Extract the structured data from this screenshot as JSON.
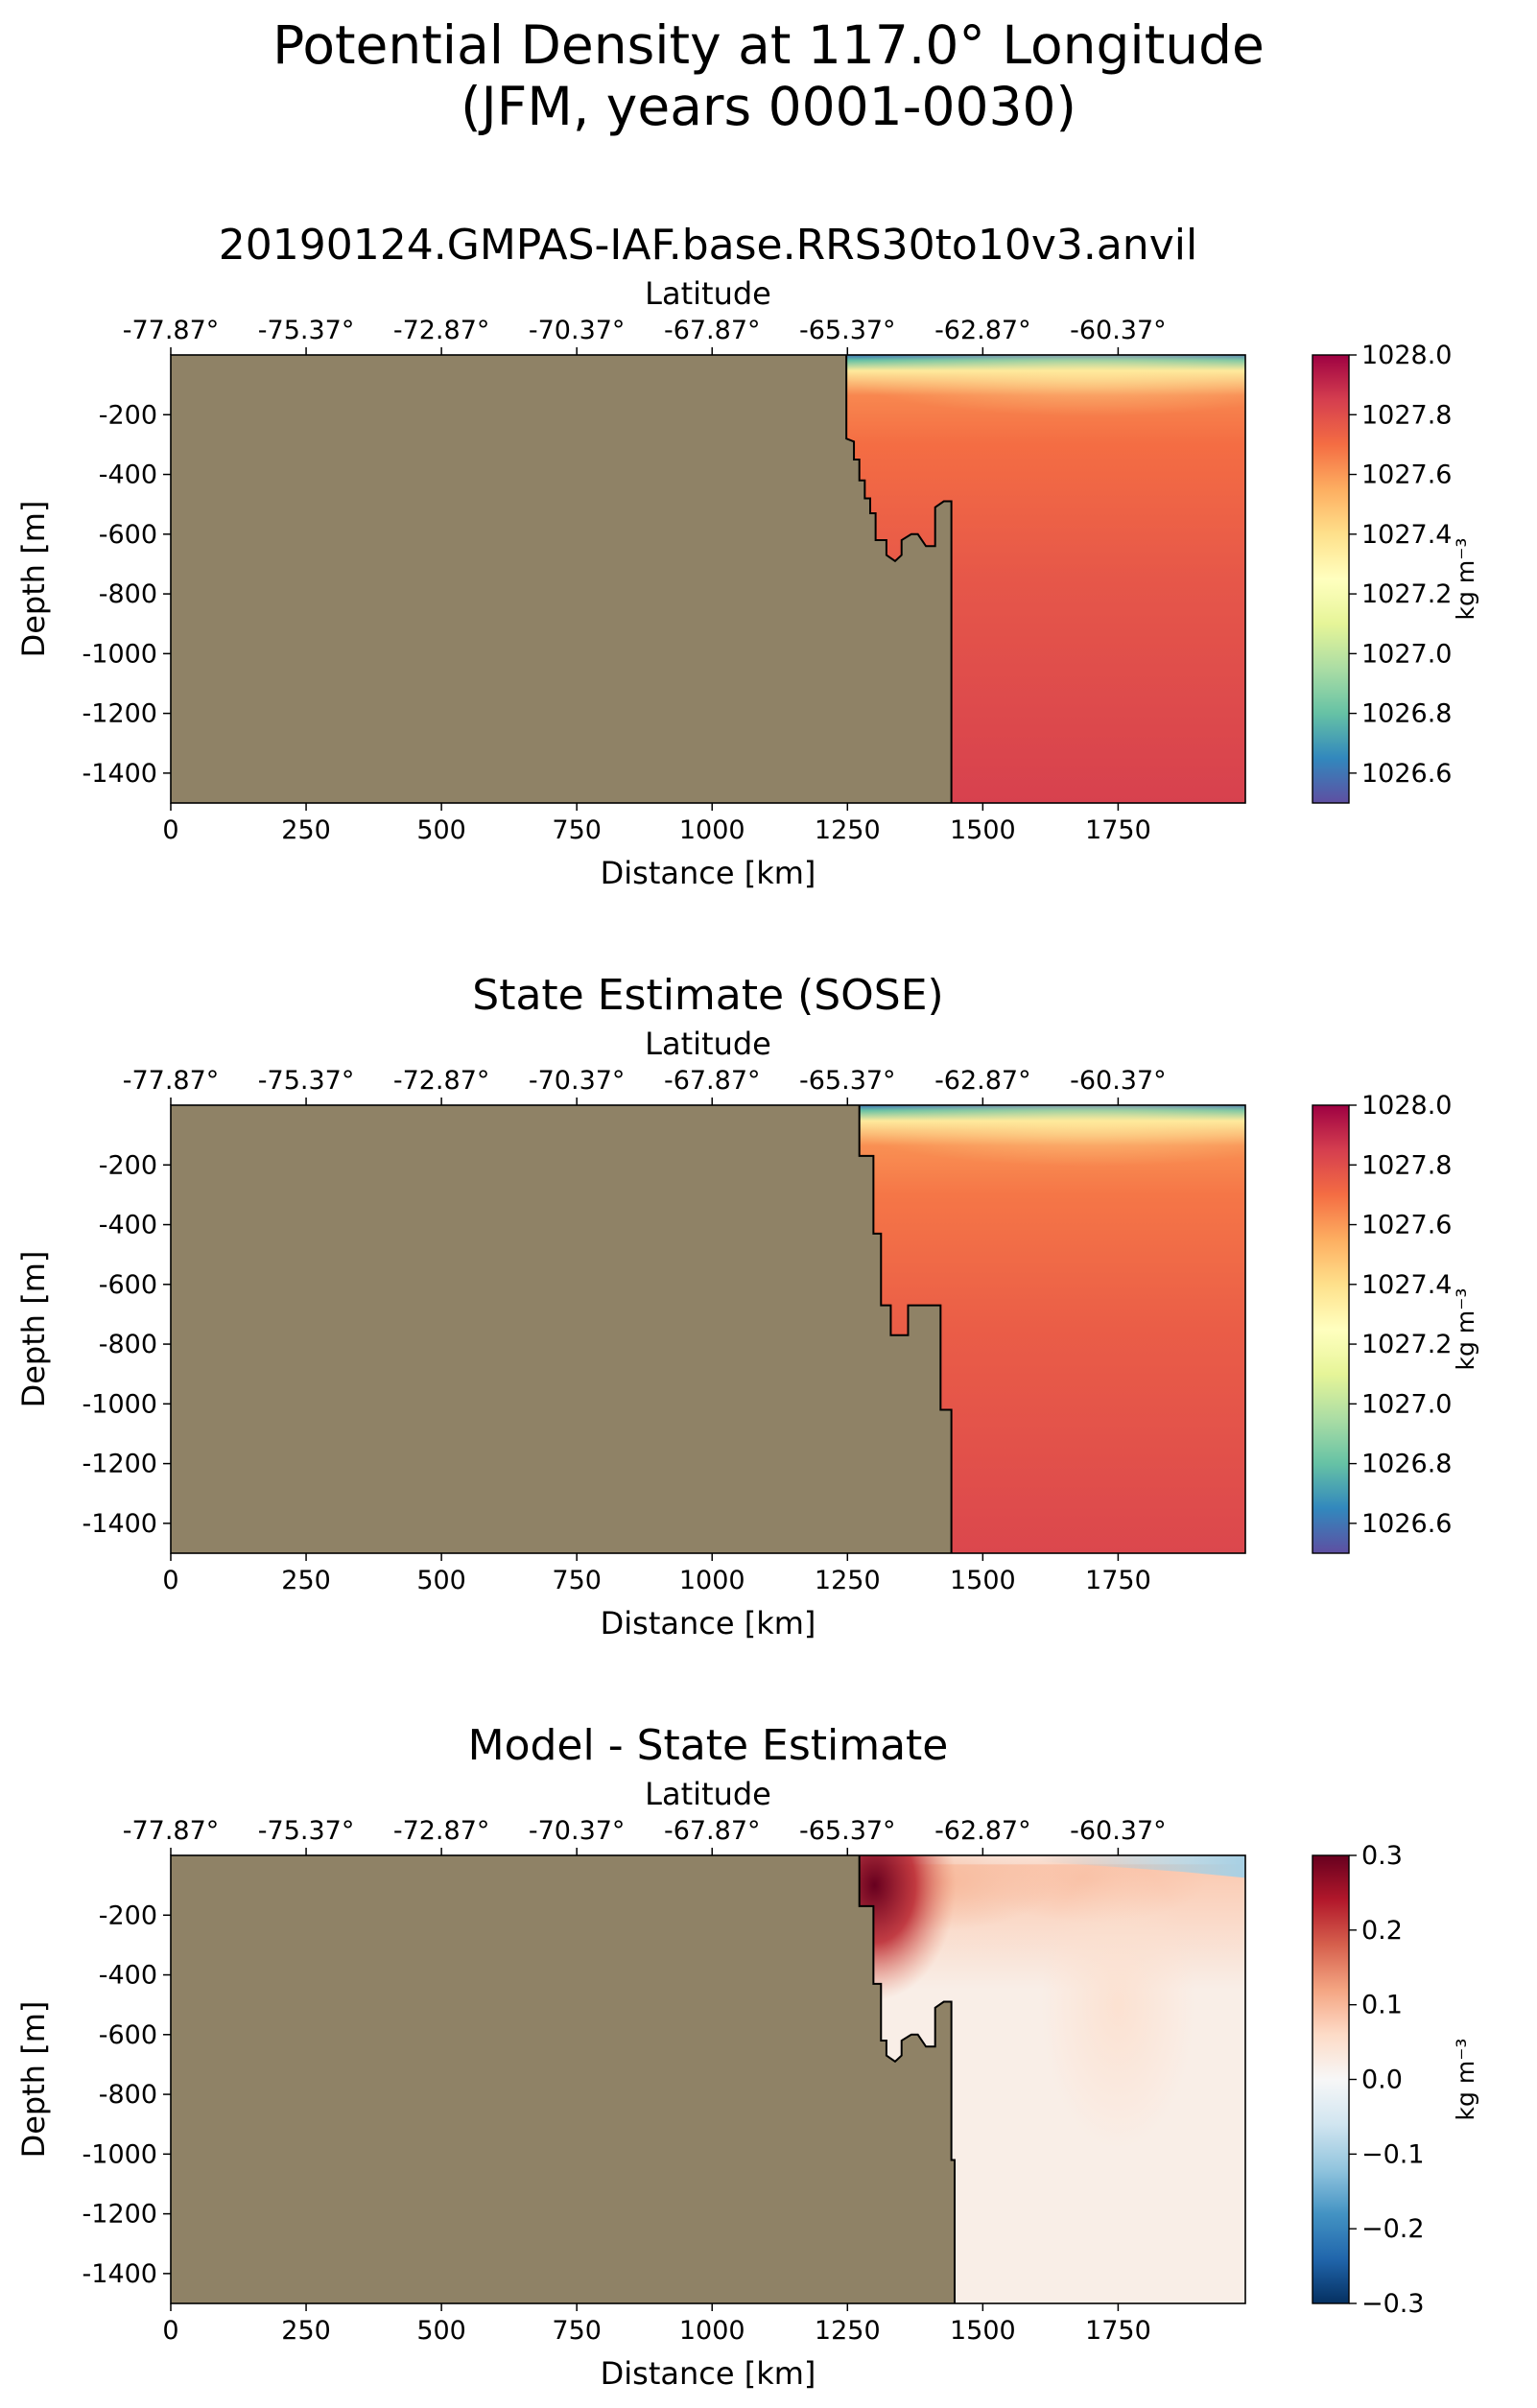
{
  "figure": {
    "title_line1": "Potential Density at 117.0° Longitude",
    "title_line2": "(JFM, years 0001-0030)"
  },
  "colors": {
    "land": "#8f8266",
    "frame": "#000000"
  },
  "chart_data": [
    {
      "type": "heatmap",
      "title": "20190124.GMPAS-IAF.base.RRS30to10v3.anvil",
      "xlabel": "Distance [km]",
      "ylabel": "Depth [m]",
      "top_xlabel": "Latitude",
      "xlim": [
        0,
        1985
      ],
      "ylim": [
        -1500,
        0
      ],
      "xticks": [
        0,
        250,
        500,
        750,
        1000,
        1250,
        1500,
        1750
      ],
      "yticks": [
        -200,
        -400,
        -600,
        -800,
        -1000,
        -1200,
        -1400
      ],
      "top_xtick_labels": [
        "-77.87°",
        "-75.37°",
        "-72.87°",
        "-70.37°",
        "-67.87°",
        "-65.37°",
        "-62.87°",
        "-60.37°"
      ],
      "colorbar": {
        "label": "kg m⁻³",
        "range": [
          1026.5,
          1028.0
        ],
        "ticks": [
          1026.6,
          1026.8,
          1027.0,
          1027.2,
          1027.4,
          1027.6,
          1027.8,
          1028.0
        ],
        "tick_labels": [
          "1026.6",
          "1026.8",
          "1027.0",
          "1027.2",
          "1027.4",
          "1027.6",
          "1027.8",
          "1028.0"
        ],
        "colormap": "Spectral_r"
      },
      "field": {
        "surface_value": 1026.6,
        "near_surface_value": 1027.35,
        "upper_value": 1027.7,
        "deep_value": 1027.84
      },
      "bathymetry_km_m": [
        [
          1248,
          0
        ],
        [
          1248,
          -280
        ],
        [
          1262,
          -290
        ],
        [
          1262,
          -350
        ],
        [
          1272,
          -350
        ],
        [
          1272,
          -420
        ],
        [
          1282,
          -420
        ],
        [
          1282,
          -480
        ],
        [
          1292,
          -480
        ],
        [
          1292,
          -530
        ],
        [
          1302,
          -530
        ],
        [
          1302,
          -620
        ],
        [
          1322,
          -620
        ],
        [
          1322,
          -670
        ],
        [
          1338,
          -690
        ],
        [
          1350,
          -670
        ],
        [
          1350,
          -620
        ],
        [
          1368,
          -600
        ],
        [
          1380,
          -600
        ],
        [
          1395,
          -640
        ],
        [
          1412,
          -640
        ],
        [
          1412,
          -510
        ],
        [
          1428,
          -490
        ],
        [
          1442,
          -490
        ],
        [
          1442,
          -1500
        ]
      ]
    },
    {
      "type": "heatmap",
      "title": "State Estimate (SOSE)",
      "xlabel": "Distance [km]",
      "ylabel": "Depth [m]",
      "top_xlabel": "Latitude",
      "xlim": [
        0,
        1985
      ],
      "ylim": [
        -1500,
        0
      ],
      "xticks": [
        0,
        250,
        500,
        750,
        1000,
        1250,
        1500,
        1750
      ],
      "yticks": [
        -200,
        -400,
        -600,
        -800,
        -1000,
        -1200,
        -1400
      ],
      "top_xtick_labels": [
        "-77.87°",
        "-75.37°",
        "-72.87°",
        "-70.37°",
        "-67.87°",
        "-65.37°",
        "-62.87°",
        "-60.37°"
      ],
      "colorbar": {
        "label": "kg m⁻³",
        "range": [
          1026.5,
          1028.0
        ],
        "ticks": [
          1026.6,
          1026.8,
          1027.0,
          1027.2,
          1027.4,
          1027.6,
          1027.8,
          1028.0
        ],
        "tick_labels": [
          "1026.6",
          "1026.8",
          "1027.0",
          "1027.2",
          "1027.4",
          "1027.6",
          "1027.8",
          "1028.0"
        ],
        "colormap": "Spectral_r"
      },
      "field": {
        "surface_value": 1026.6,
        "near_surface_value": 1027.35,
        "upper_value": 1027.68,
        "deep_value": 1027.82
      },
      "bathymetry_km_m": [
        [
          1272,
          0
        ],
        [
          1272,
          -170
        ],
        [
          1298,
          -170
        ],
        [
          1298,
          -430
        ],
        [
          1312,
          -430
        ],
        [
          1312,
          -670
        ],
        [
          1330,
          -670
        ],
        [
          1330,
          -770
        ],
        [
          1362,
          -770
        ],
        [
          1362,
          -670
        ],
        [
          1422,
          -670
        ],
        [
          1422,
          -1020
        ],
        [
          1442,
          -1020
        ],
        [
          1442,
          -1500
        ]
      ]
    },
    {
      "type": "heatmap",
      "title": "Model - State Estimate",
      "xlabel": "Distance [km]",
      "ylabel": "Depth [m]",
      "top_xlabel": "Latitude",
      "xlim": [
        0,
        1985
      ],
      "ylim": [
        -1500,
        0
      ],
      "xticks": [
        0,
        250,
        500,
        750,
        1000,
        1250,
        1500,
        1750
      ],
      "yticks": [
        -200,
        -400,
        -600,
        -800,
        -1000,
        -1200,
        -1400
      ],
      "top_xtick_labels": [
        "-77.87°",
        "-75.37°",
        "-72.87°",
        "-70.37°",
        "-67.87°",
        "-65.37°",
        "-62.87°",
        "-60.37°"
      ],
      "colorbar": {
        "label": "kg m⁻³",
        "range": [
          -0.3,
          0.3
        ],
        "ticks": [
          -0.3,
          -0.2,
          -0.1,
          0.0,
          0.1,
          0.2,
          0.3
        ],
        "tick_labels": [
          "−0.3",
          "−0.2",
          "−0.1",
          "0.0",
          "0.1",
          "0.2",
          "0.3"
        ],
        "colormap": "RdBu_r"
      },
      "field": {
        "max_anomaly": 0.3,
        "upper_anomaly": 0.08,
        "deep_anomaly": 0.02,
        "surface_negative": -0.1
      },
      "bathymetry_km_m": [
        [
          1272,
          0
        ],
        [
          1272,
          -170
        ],
        [
          1298,
          -170
        ],
        [
          1298,
          -430
        ],
        [
          1312,
          -430
        ],
        [
          1312,
          -620
        ],
        [
          1322,
          -620
        ],
        [
          1322,
          -670
        ],
        [
          1338,
          -690
        ],
        [
          1350,
          -670
        ],
        [
          1350,
          -620
        ],
        [
          1368,
          -600
        ],
        [
          1380,
          -600
        ],
        [
          1395,
          -640
        ],
        [
          1412,
          -640
        ],
        [
          1412,
          -510
        ],
        [
          1428,
          -490
        ],
        [
          1442,
          -490
        ],
        [
          1442,
          -1020
        ],
        [
          1448,
          -1020
        ],
        [
          1448,
          -1500
        ]
      ]
    }
  ]
}
